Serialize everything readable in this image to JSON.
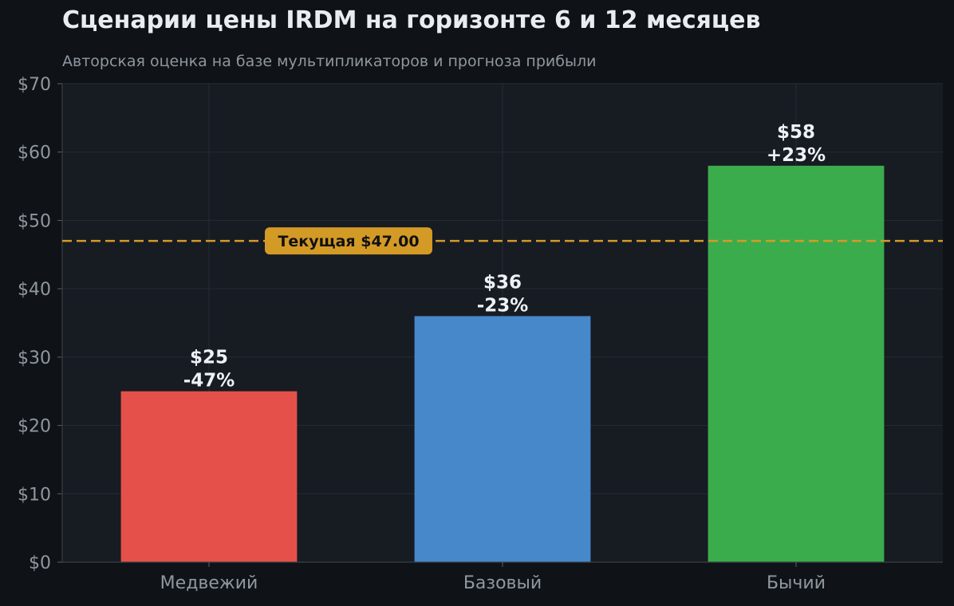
{
  "chart_data": {
    "type": "bar",
    "title": "Сценарии цены IRDM на горизонте 6 и 12 месяцев",
    "subtitle": "Авторская оценка на базе мультипликаторов и прогноза прибыли",
    "categories": [
      "Медвежий",
      "Базовый",
      "Бычий"
    ],
    "values": [
      25,
      36,
      58
    ],
    "value_labels": [
      "$25",
      "$36",
      "$58"
    ],
    "change_labels": [
      "-47%",
      "-23%",
      "+23%"
    ],
    "bar_colors": [
      "#e5504a",
      "#4788cb",
      "#3bac4c"
    ],
    "ylim": [
      0,
      70
    ],
    "yticks": [
      0,
      10,
      20,
      30,
      40,
      50,
      60,
      70
    ],
    "ytick_labels": [
      "$0",
      "$10",
      "$20",
      "$30",
      "$40",
      "$50",
      "$60",
      "$70"
    ],
    "xlabel": "",
    "ylabel": "",
    "grid": true,
    "reference_line": {
      "value": 47,
      "label": "Текущая $47.00",
      "color": "#d49a26"
    }
  }
}
